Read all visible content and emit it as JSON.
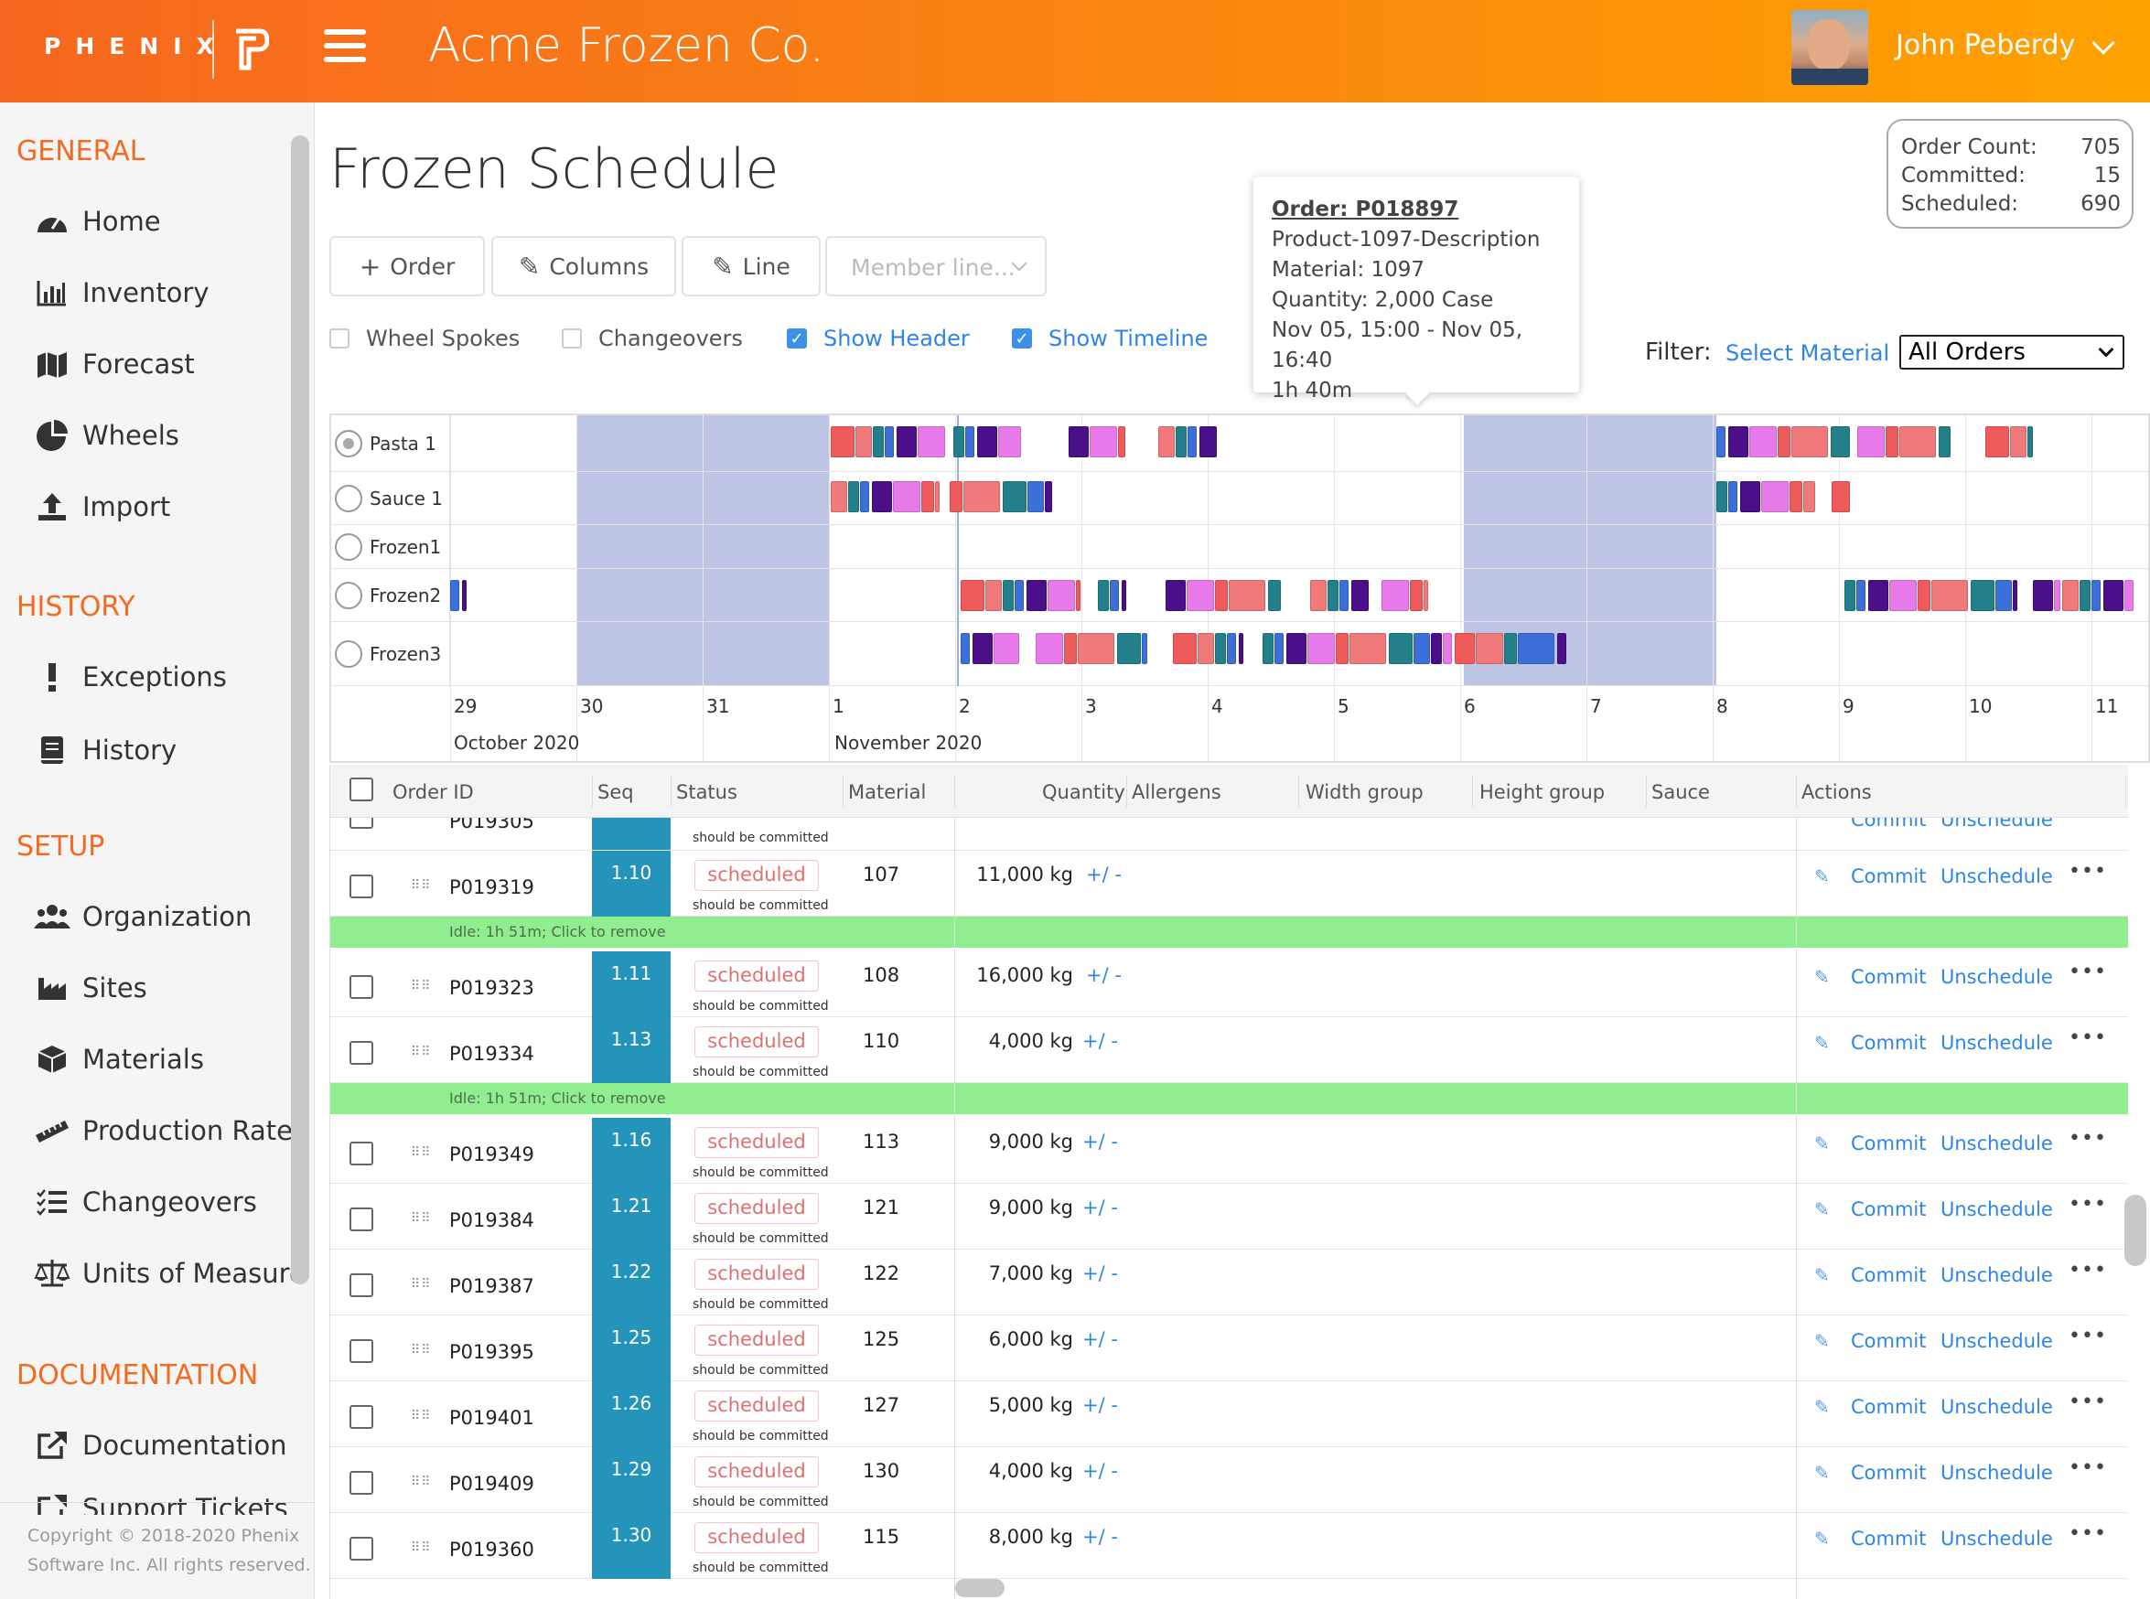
{
  "header": {
    "logo_text": "PHENIX",
    "company": "Acme Frozen Co.",
    "user_name": "John Peberdy"
  },
  "sidebar": {
    "sections": [
      {
        "title": "GENERAL",
        "items": [
          {
            "label": "Home",
            "icon": "dashboard-icon"
          },
          {
            "label": "Inventory",
            "icon": "bar-chart-icon"
          },
          {
            "label": "Forecast",
            "icon": "map-icon"
          },
          {
            "label": "Wheels",
            "icon": "pie-chart-icon"
          },
          {
            "label": "Import",
            "icon": "upload-icon"
          }
        ]
      },
      {
        "title": "HISTORY",
        "items": [
          {
            "label": "Exceptions",
            "icon": "exclamation-icon"
          },
          {
            "label": "History",
            "icon": "book-icon"
          }
        ]
      },
      {
        "title": "SETUP",
        "items": [
          {
            "label": "Organization",
            "icon": "users-icon"
          },
          {
            "label": "Sites",
            "icon": "factory-icon"
          },
          {
            "label": "Materials",
            "icon": "cube-icon"
          },
          {
            "label": "Production Rates",
            "icon": "ruler-icon"
          },
          {
            "label": "Changeovers",
            "icon": "tasks-icon"
          },
          {
            "label": "Units of Measure",
            "icon": "balance-scale-icon"
          }
        ]
      },
      {
        "title": "DOCUMENTATION",
        "items": [
          {
            "label": "Documentation",
            "icon": "external-link-icon"
          },
          {
            "label": "Support Tickets",
            "icon": "external-link-icon"
          }
        ]
      }
    ],
    "copyright": "Copyright © 2018-2020 Phenix Software Inc. All rights reserved."
  },
  "page": {
    "title": "Frozen Schedule",
    "buttons": {
      "order": "Order",
      "columns": "Columns",
      "line": "Line"
    },
    "member_placeholder": "Member line...",
    "checkboxes": [
      {
        "label": "Wheel Spokes",
        "checked": false
      },
      {
        "label": "Changeovers",
        "checked": false
      },
      {
        "label": "Show Header",
        "checked": true
      },
      {
        "label": "Show Timeline",
        "checked": true
      }
    ],
    "filter": {
      "label": "Filter:",
      "link": "Select Material",
      "selected": "All Orders"
    }
  },
  "tooltip": {
    "title": "Order: P018897",
    "lines": [
      "Product-1097-Description",
      "Material: 1097",
      "Quantity: 2,000 Case",
      "Nov 05, 15:00 - Nov 05, 16:40",
      "1h 40m"
    ]
  },
  "stats": [
    {
      "label": "Order Count:",
      "value": "705"
    },
    {
      "label": "Committed:",
      "value": "15"
    },
    {
      "label": "Scheduled:",
      "value": "690"
    }
  ],
  "timeline": {
    "lines": [
      "Pasta 1",
      "Sauce 1",
      "Frozen1",
      "Frozen2",
      "Frozen3"
    ],
    "days": [
      "29",
      "30",
      "31",
      "1",
      "2",
      "3",
      "4",
      "5",
      "6",
      "7",
      "8",
      "9",
      "10",
      "11"
    ],
    "months": [
      "October 2020",
      "November 2020"
    ],
    "block_colors": {
      "red": "#ef5b5b",
      "pink": "#e879e8",
      "purple": "#4b0f8a",
      "blue": "#3c6fd8",
      "teal": "#23808a",
      "salmon": "#f07a7a"
    }
  },
  "table": {
    "columns": [
      "Order ID",
      "Seq",
      "Status",
      "Material",
      "Quantity",
      "Allergens",
      "Width group",
      "Height group",
      "Sauce",
      "Actions"
    ],
    "status_note": "should be committed",
    "idle_text": "Idle: 1h 51m; Click to remove",
    "plus_minus": "+/ -",
    "actions": {
      "commit": "Commit",
      "unschedule": "Unschedule",
      "more": "•••"
    },
    "partial_row": {
      "id": "P019305"
    },
    "rows": [
      {
        "id": "P019319",
        "seq": "1.10",
        "status": "scheduled",
        "material": "107",
        "quantity": "11,000 kg"
      },
      {
        "id": "P019323",
        "seq": "1.11",
        "status": "scheduled",
        "material": "108",
        "quantity": "16,000 kg"
      },
      {
        "id": "P019334",
        "seq": "1.13",
        "status": "scheduled",
        "material": "110",
        "quantity": "4,000 kg"
      },
      {
        "id": "P019349",
        "seq": "1.16",
        "status": "scheduled",
        "material": "113",
        "quantity": "9,000 kg"
      },
      {
        "id": "P019384",
        "seq": "1.21",
        "status": "scheduled",
        "material": "121",
        "quantity": "9,000 kg"
      },
      {
        "id": "P019387",
        "seq": "1.22",
        "status": "scheduled",
        "material": "122",
        "quantity": "7,000 kg"
      },
      {
        "id": "P019395",
        "seq": "1.25",
        "status": "scheduled",
        "material": "125",
        "quantity": "6,000 kg"
      },
      {
        "id": "P019401",
        "seq": "1.26",
        "status": "scheduled",
        "material": "127",
        "quantity": "5,000 kg"
      },
      {
        "id": "P019409",
        "seq": "1.29",
        "status": "scheduled",
        "material": "130",
        "quantity": "4,000 kg"
      },
      {
        "id": "P019360",
        "seq": "1.30",
        "status": "scheduled",
        "material": "115",
        "quantity": "8,000 kg"
      }
    ]
  }
}
